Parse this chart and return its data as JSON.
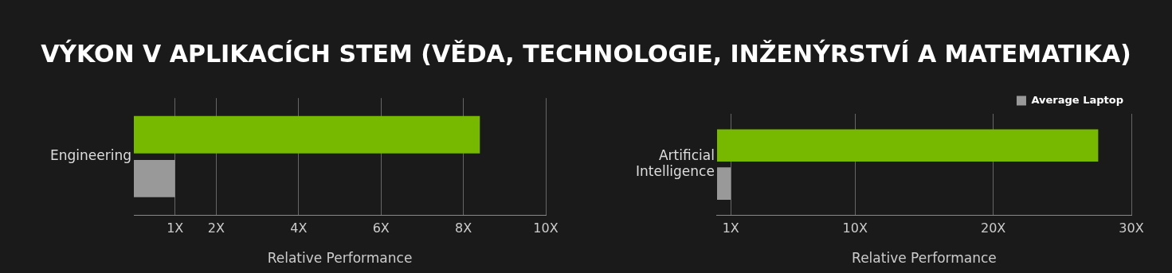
{
  "chart_data": [
    {
      "type": "bar",
      "title": "VÝKON V APLIKACÍCH STEM (VĚDA, TECHNOLOGIE, INŽENÝRSTVÍ A MATEMATIKA)",
      "orientation": "horizontal",
      "categories": [
        "Engineering"
      ],
      "series": [
        {
          "color": "#76b900",
          "values": [
            8.4
          ]
        },
        {
          "color": "#999999",
          "values": [
            1
          ]
        }
      ],
      "xlim": [
        0,
        10
      ],
      "xticks": [
        {
          "value": 1,
          "label": "1X"
        },
        {
          "value": 2,
          "label": "2X"
        },
        {
          "value": 4,
          "label": "4X"
        },
        {
          "value": 6,
          "label": "6X"
        },
        {
          "value": 8,
          "label": "8X"
        },
        {
          "value": 10,
          "label": "10X"
        }
      ],
      "xlabel": "Relative Performance",
      "grid": "x",
      "legend": false
    },
    {
      "type": "bar",
      "orientation": "horizontal",
      "categories": [
        "Artificial Intelligence"
      ],
      "series": [
        {
          "color": "#76b900",
          "values": [
            27.6
          ]
        },
        {
          "name": "Average Laptop",
          "color": "#999999",
          "values": [
            1
          ]
        }
      ],
      "xlim": [
        0,
        30
      ],
      "xticks": [
        {
          "value": 1,
          "label": "1X"
        },
        {
          "value": 10,
          "label": "10X"
        },
        {
          "value": 20,
          "label": "20X"
        },
        {
          "value": 30,
          "label": "30X"
        }
      ],
      "xlabel": "Relative Performance",
      "grid": "x",
      "legend": "top right"
    }
  ]
}
